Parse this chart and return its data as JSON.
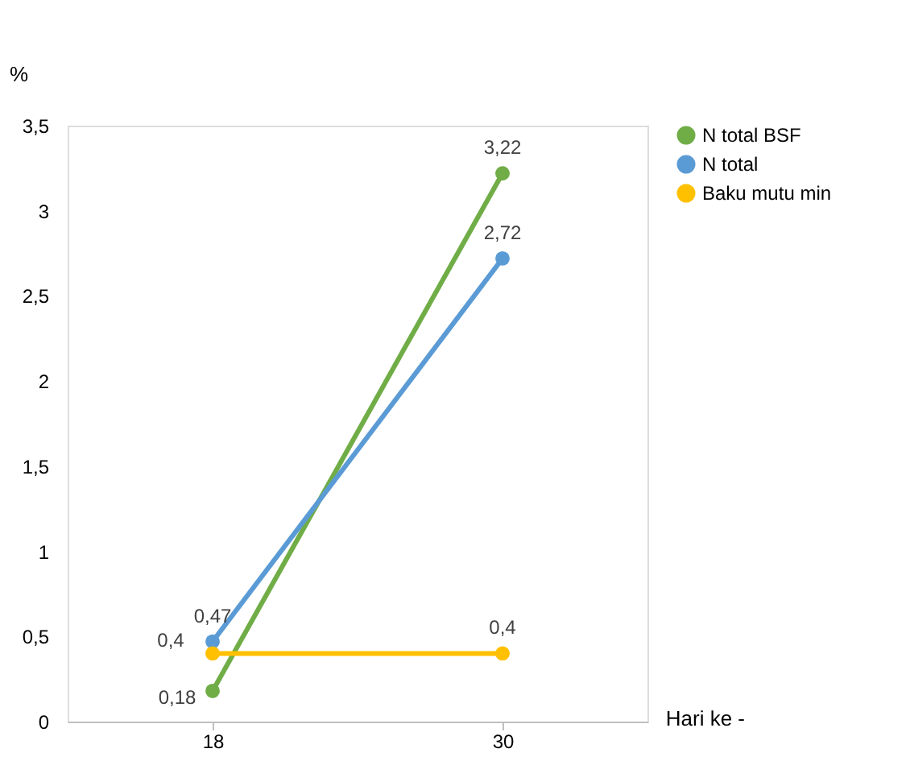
{
  "chart_data": {
    "type": "line",
    "xlabel": "Hari ke -",
    "ylabel": "%",
    "categories": [
      "18",
      "30"
    ],
    "series": [
      {
        "name": "N total BSF",
        "color": "#70ad47",
        "values": [
          0.18,
          3.22
        ],
        "value_labels": [
          "0,18",
          "3,22"
        ]
      },
      {
        "name": "N total",
        "color": "#5b9bd5",
        "values": [
          0.47,
          2.72
        ],
        "value_labels": [
          "0,47",
          "2,72"
        ]
      },
      {
        "name": "Baku mutu min",
        "color": "#ffc000",
        "values": [
          0.4,
          0.4
        ],
        "value_labels": [
          "0,4",
          "0,4"
        ]
      }
    ],
    "ylim": [
      0,
      3.5
    ],
    "yticks": [
      0,
      {
        "value": 0.5,
        "label": "0,5"
      },
      1,
      {
        "value": 1.5,
        "label": "1,5"
      },
      2,
      {
        "value": 2.5,
        "label": "2,5"
      },
      3,
      {
        "value": 3.5,
        "label": "3,5"
      }
    ],
    "grid": false,
    "legend": "right",
    "marker": "circle",
    "line_style": "solid"
  }
}
